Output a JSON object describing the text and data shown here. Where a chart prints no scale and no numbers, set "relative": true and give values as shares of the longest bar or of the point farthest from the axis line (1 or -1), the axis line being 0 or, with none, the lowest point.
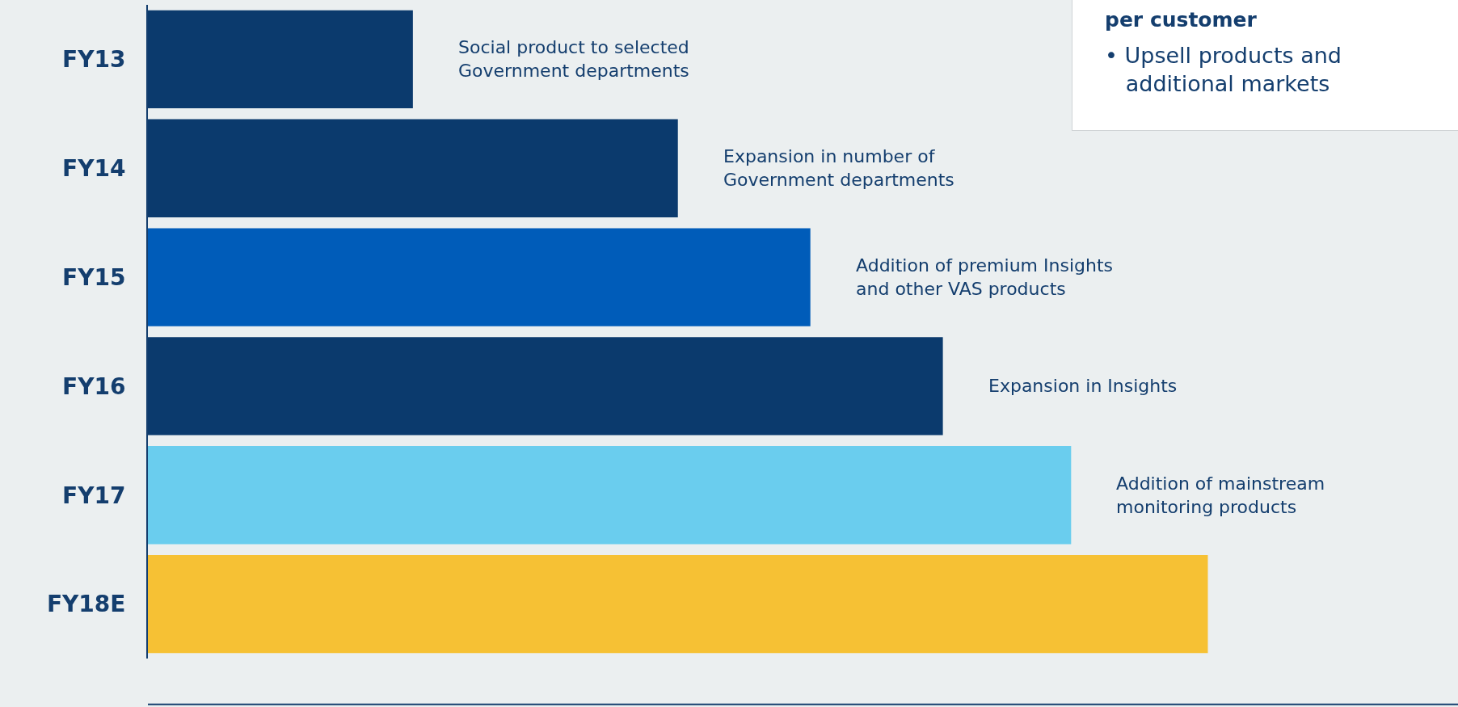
{
  "chart_data": {
    "type": "bar",
    "orientation": "horizontal",
    "relative": true,
    "categories": [
      "FY13",
      "FY14",
      "FY15",
      "FY16",
      "FY17",
      "FY18E"
    ],
    "values": [
      0.25,
      0.5,
      0.625,
      0.75,
      0.871,
      1
    ],
    "colors": [
      "#0b3a6d",
      "#0b3a6d",
      "#005cb9",
      "#0b3a6d",
      "#6acdee",
      "#f6c134"
    ],
    "annotations": [
      "Social product to selected\nGovernment departments",
      "Expansion in number of\nGovernment departments",
      "Addition of premium Insights\nand other VAS products",
      "Expansion in Insights",
      "Addition of mainstream\nmonitoring products",
      "per customer",
      "• Upsell products and\n   additional markets"
    ]
  }
}
